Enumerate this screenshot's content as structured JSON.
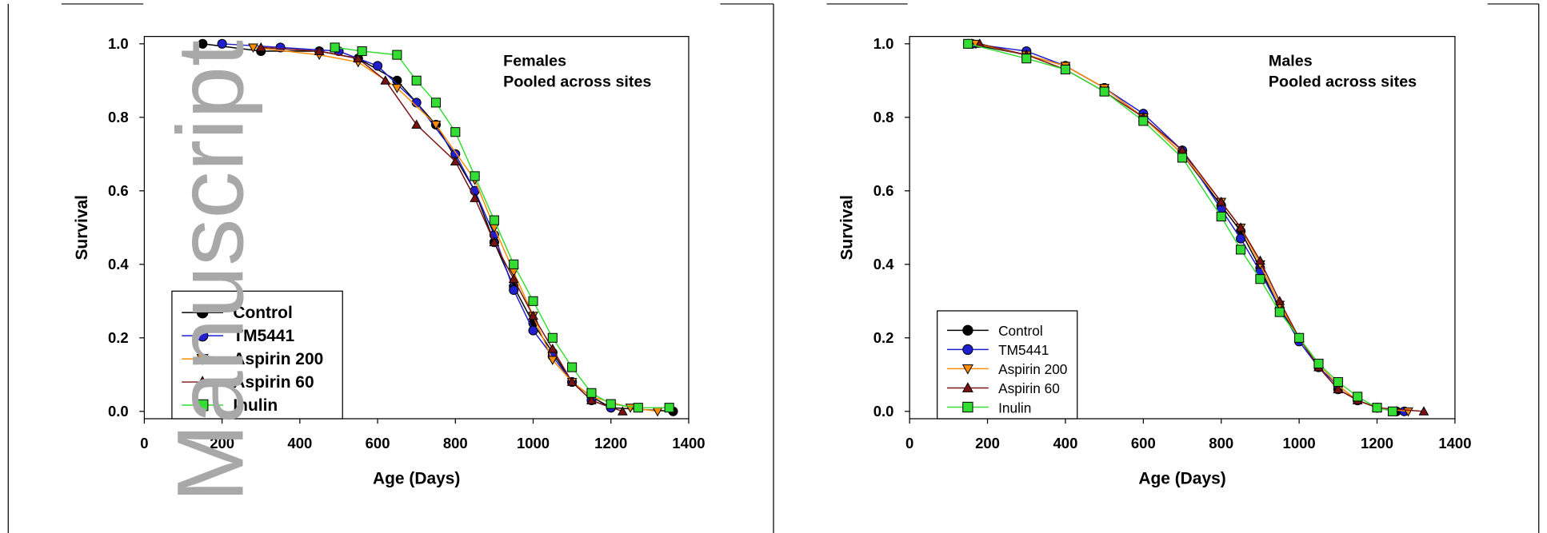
{
  "watermark": "Manuscript",
  "chart_data": [
    {
      "type": "line",
      "annotations": [
        "Females",
        "Pooled across sites"
      ],
      "x_label": "Age (Days)",
      "y_label": "Survival",
      "xlim": [
        0,
        1400
      ],
      "xticks": [
        0,
        200,
        400,
        600,
        800,
        1000,
        1200,
        1400
      ],
      "ylim": [
        -0.02,
        1.02
      ],
      "yticks": [
        {
          "value": 0,
          "label": "0.0"
        },
        0.2,
        0.4,
        0.6,
        0.8,
        {
          "value": 1,
          "label": "1.0"
        }
      ],
      "legend": "lower left",
      "series": [
        {
          "name": "Control",
          "color": "#000000",
          "marker": "circle",
          "x": [
            150,
            300,
            450,
            550,
            650,
            750,
            850,
            900,
            950,
            1000,
            1050,
            1100,
            1150,
            1200,
            1360
          ],
          "values": [
            1.0,
            0.98,
            0.98,
            0.96,
            0.9,
            0.78,
            0.6,
            0.46,
            0.34,
            0.24,
            0.16,
            0.08,
            0.04,
            0.01,
            0
          ]
        },
        {
          "name": "TM5441",
          "color": "#1f1fd0",
          "marker": "circle",
          "x": [
            200,
            350,
            500,
            600,
            700,
            800,
            850,
            900,
            950,
            1000,
            1050,
            1100,
            1150,
            1200
          ],
          "values": [
            1.0,
            0.99,
            0.98,
            0.94,
            0.84,
            0.7,
            0.6,
            0.48,
            0.33,
            0.22,
            0.15,
            0.08,
            0.03,
            0.01
          ]
        },
        {
          "name": "Aspirin 200",
          "color": "#ff8c00",
          "marker": "triangle-down",
          "x": [
            280,
            450,
            550,
            650,
            750,
            850,
            900,
            950,
            1000,
            1050,
            1100,
            1150,
            1250,
            1320
          ],
          "values": [
            0.99,
            0.97,
            0.95,
            0.88,
            0.78,
            0.63,
            0.5,
            0.38,
            0.26,
            0.14,
            0.08,
            0.04,
            0.01,
            0
          ]
        },
        {
          "name": "Aspirin 60",
          "color": "#7a1212",
          "marker": "triangle-up",
          "x": [
            300,
            450,
            550,
            620,
            700,
            800,
            850,
            900,
            950,
            1000,
            1050,
            1100,
            1150,
            1230
          ],
          "values": [
            0.99,
            0.98,
            0.96,
            0.9,
            0.78,
            0.68,
            0.58,
            0.46,
            0.36,
            0.26,
            0.17,
            0.08,
            0.03,
            0
          ]
        },
        {
          "name": "Inulin",
          "color": "#33dd33",
          "marker": "square",
          "x": [
            490,
            560,
            650,
            700,
            750,
            800,
            850,
            900,
            950,
            1000,
            1050,
            1100,
            1150,
            1200,
            1270,
            1350
          ],
          "values": [
            0.99,
            0.98,
            0.97,
            0.9,
            0.84,
            0.76,
            0.64,
            0.52,
            0.4,
            0.3,
            0.2,
            0.12,
            0.05,
            0.02,
            0.01,
            0.01
          ]
        }
      ]
    },
    {
      "type": "line",
      "annotations": [
        "Males",
        "Pooled across sites"
      ],
      "x_label": "Age (Days)",
      "y_label": "Survival",
      "xlim": [
        0,
        1400
      ],
      "xticks": [
        0,
        200,
        400,
        600,
        800,
        1000,
        1200,
        1400
      ],
      "ylim": [
        -0.02,
        1.02
      ],
      "yticks": [
        {
          "value": 0,
          "label": "0.0"
        },
        0.2,
        0.4,
        0.6,
        0.8,
        {
          "value": 1,
          "label": "1.0"
        }
      ],
      "legend": "lower left",
      "series": [
        {
          "name": "Control",
          "color": "#000000",
          "marker": "circle",
          "x": [
            150,
            300,
            400,
            500,
            600,
            700,
            800,
            850,
            900,
            950,
            1000,
            1050,
            1100,
            1150,
            1200,
            1250
          ],
          "values": [
            1.0,
            0.97,
            0.94,
            0.88,
            0.8,
            0.7,
            0.56,
            0.49,
            0.39,
            0.28,
            0.2,
            0.12,
            0.06,
            0.03,
            0.01,
            0
          ]
        },
        {
          "name": "TM5441",
          "color": "#1f1fd0",
          "marker": "circle",
          "x": [
            160,
            300,
            400,
            500,
            600,
            700,
            800,
            850,
            900,
            950,
            1000,
            1050,
            1100,
            1150,
            1200,
            1270
          ],
          "values": [
            1.0,
            0.98,
            0.94,
            0.88,
            0.81,
            0.71,
            0.55,
            0.47,
            0.38,
            0.28,
            0.19,
            0.12,
            0.07,
            0.03,
            0.01,
            0
          ]
        },
        {
          "name": "Aspirin 200",
          "color": "#ff8c00",
          "marker": "triangle-down",
          "x": [
            170,
            300,
            400,
            500,
            600,
            700,
            800,
            850,
            900,
            950,
            1000,
            1050,
            1100,
            1150,
            1200,
            1280
          ],
          "values": [
            1.0,
            0.97,
            0.94,
            0.88,
            0.8,
            0.7,
            0.57,
            0.5,
            0.4,
            0.29,
            0.2,
            0.13,
            0.07,
            0.03,
            0.01,
            0
          ]
        },
        {
          "name": "Aspirin 60",
          "color": "#7a1212",
          "marker": "triangle-up",
          "x": [
            180,
            300,
            400,
            500,
            600,
            700,
            800,
            850,
            900,
            950,
            1000,
            1050,
            1100,
            1150,
            1200,
            1320
          ],
          "values": [
            1.0,
            0.97,
            0.93,
            0.87,
            0.8,
            0.71,
            0.57,
            0.5,
            0.41,
            0.3,
            0.2,
            0.12,
            0.06,
            0.03,
            0.01,
            0
          ]
        },
        {
          "name": "Inulin",
          "color": "#33dd33",
          "marker": "square",
          "x": [
            150,
            300,
            400,
            500,
            600,
            700,
            800,
            850,
            900,
            950,
            1000,
            1050,
            1100,
            1150,
            1200,
            1240
          ],
          "values": [
            1.0,
            0.96,
            0.93,
            0.87,
            0.79,
            0.69,
            0.53,
            0.44,
            0.36,
            0.27,
            0.2,
            0.13,
            0.08,
            0.04,
            0.01,
            0
          ]
        }
      ]
    }
  ]
}
